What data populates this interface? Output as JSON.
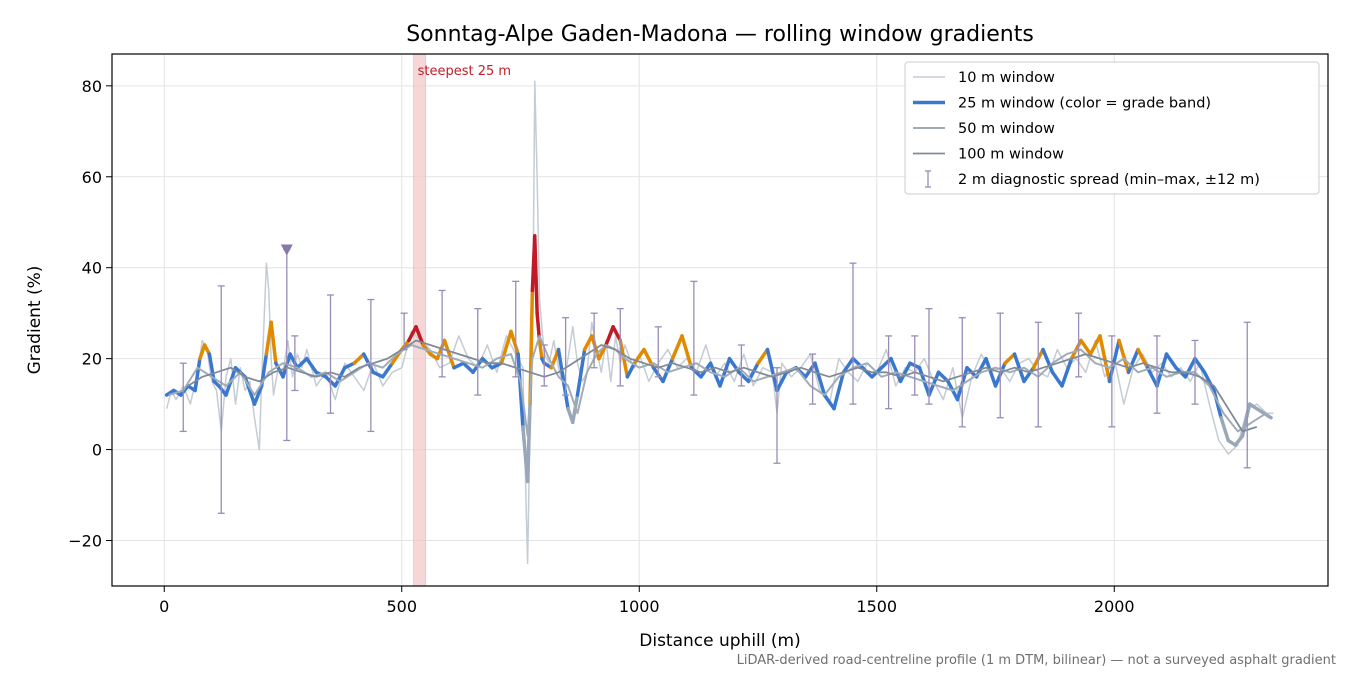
{
  "chart_data": {
    "type": "line",
    "title": "Sonntag-Alpe Gaden-Madona — rolling window gradients",
    "xlabel": "Distance uphill (m)",
    "ylabel": "Gradient (%)",
    "xlim": [
      -110,
      2450
    ],
    "ylim": [
      -30,
      87
    ],
    "xticks": [
      0,
      500,
      1000,
      1500,
      2000
    ],
    "xtick_labels": [
      "0",
      "500",
      "1000",
      "1500",
      "2000"
    ],
    "yticks": [
      -20,
      0,
      20,
      40,
      60,
      80
    ],
    "ytick_labels": [
      "−20",
      "0",
      "20",
      "40",
      "60",
      "80"
    ],
    "grid": true,
    "legend_position": "top-right",
    "footnote": "LiDAR-derived road-centreline profile (1 m DTM, bilinear) — not a surveyed asphalt gradient",
    "annotations": [
      {
        "text": "steepest 25 m",
        "x_start": 525,
        "x_end": 550,
        "color": "#c0202a"
      }
    ],
    "marker": {
      "x": 258,
      "y": 44,
      "shape": "triangle-down",
      "color": "#8878a8"
    },
    "grade_band_colors": {
      "descent": "#98a8b8",
      "moderate": "#3a78d0",
      "steep": "#e08a00",
      "very_steep": "#c01a28"
    },
    "series": [
      {
        "name": "10 m window",
        "color": "#c4ccd4",
        "width": 1.5,
        "x": [
          5,
          15,
          25,
          40,
          55,
          70,
          80,
          90,
          100,
          110,
          120,
          130,
          140,
          150,
          160,
          170,
          180,
          190,
          200,
          205,
          210,
          215,
          220,
          225,
          230,
          240,
          250,
          260,
          270,
          280,
          290,
          300,
          320,
          340,
          360,
          380,
          400,
          420,
          440,
          460,
          480,
          500,
          520,
          540,
          560,
          580,
          600,
          620,
          640,
          660,
          680,
          700,
          720,
          740,
          745,
          750,
          755,
          760,
          765,
          770,
          775,
          780,
          785,
          790,
          795,
          800,
          810,
          820,
          830,
          840,
          850,
          860,
          870,
          880,
          890,
          900,
          910,
          920,
          930,
          940,
          950,
          960,
          970,
          980,
          990,
          1000,
          1020,
          1040,
          1060,
          1080,
          1100,
          1120,
          1140,
          1160,
          1180,
          1200,
          1220,
          1240,
          1260,
          1280,
          1290,
          1300,
          1320,
          1340,
          1360,
          1380,
          1400,
          1420,
          1440,
          1460,
          1480,
          1500,
          1520,
          1540,
          1560,
          1580,
          1600,
          1620,
          1640,
          1660,
          1680,
          1700,
          1720,
          1740,
          1760,
          1780,
          1800,
          1820,
          1840,
          1860,
          1880,
          1900,
          1920,
          1940,
          1960,
          1980,
          2000,
          2020,
          2040,
          2060,
          2080,
          2100,
          2120,
          2140,
          2160,
          2180,
          2200,
          2220,
          2240,
          2260,
          2280,
          2300,
          2320,
          2335
        ],
        "y": [
          9,
          13,
          11,
          14,
          10,
          17,
          24,
          22,
          15,
          13,
          4,
          16,
          20,
          10,
          18,
          13,
          15,
          7,
          0,
          15,
          28,
          41,
          35,
          20,
          12,
          18,
          17,
          24,
          16,
          21,
          18,
          22,
          14,
          17,
          11,
          19,
          16,
          13,
          19,
          14,
          17,
          18,
          26,
          24,
          22,
          18,
          19,
          25,
          20,
          18,
          23,
          17,
          25,
          21,
          22,
          19,
          18,
          -5,
          -25,
          5,
          20,
          81,
          60,
          33,
          27,
          21,
          19,
          24,
          18,
          14,
          20,
          27,
          19,
          15,
          17,
          28,
          22,
          17,
          24,
          15,
          25,
          19,
          23,
          20,
          18,
          21,
          15,
          19,
          22,
          18,
          20,
          17,
          23,
          16,
          19,
          15,
          21,
          14,
          18,
          17,
          8,
          19,
          16,
          18,
          21,
          13,
          10,
          20,
          17,
          15,
          19,
          17,
          22,
          14,
          18,
          17,
          20,
          15,
          11,
          18,
          7,
          16,
          21,
          17,
          18,
          15,
          19,
          20,
          17,
          16,
          22,
          18,
          20,
          17,
          24,
          16,
          20,
          10,
          18,
          21,
          17,
          19,
          16,
          18,
          15,
          19,
          10,
          2,
          -1,
          1,
          9,
          10,
          8,
          8
        ]
      },
      {
        "name": "25 m window (color = grade band)",
        "color": "#3a78d0",
        "width": 3.5,
        "banded": true,
        "x": [
          5,
          20,
          35,
          50,
          65,
          75,
          85,
          95,
          105,
          115,
          130,
          150,
          170,
          190,
          205,
          215,
          225,
          235,
          250,
          265,
          280,
          300,
          320,
          340,
          360,
          380,
          400,
          420,
          440,
          460,
          480,
          500,
          515,
          530,
          545,
          560,
          575,
          590,
          610,
          630,
          650,
          670,
          690,
          710,
          730,
          745,
          755,
          765,
          770,
          775,
          780,
          785,
          790,
          795,
          800,
          815,
          830,
          850,
          860,
          870,
          885,
          900,
          915,
          930,
          945,
          960,
          975,
          990,
          1010,
          1030,
          1050,
          1070,
          1090,
          1110,
          1130,
          1150,
          1170,
          1190,
          1210,
          1230,
          1250,
          1270,
          1290,
          1310,
          1330,
          1350,
          1370,
          1390,
          1410,
          1430,
          1450,
          1470,
          1490,
          1510,
          1530,
          1550,
          1570,
          1590,
          1610,
          1630,
          1650,
          1670,
          1690,
          1710,
          1730,
          1750,
          1770,
          1790,
          1810,
          1830,
          1850,
          1870,
          1890,
          1910,
          1930,
          1950,
          1970,
          1990,
          2010,
          2030,
          2050,
          2070,
          2090,
          2110,
          2130,
          2150,
          2170,
          2190,
          2210,
          2225,
          2240,
          2255,
          2270,
          2285,
          2300,
          2315,
          2330
        ],
        "y": [
          12,
          13,
          12,
          14,
          13,
          20,
          23,
          21,
          15,
          14,
          12,
          18,
          16,
          10,
          14,
          21,
          28,
          19,
          16,
          21,
          18,
          20,
          17,
          16,
          14,
          18,
          19,
          21,
          17,
          16,
          19,
          22,
          24,
          27,
          23,
          21,
          20,
          24,
          18,
          19,
          17,
          20,
          18,
          19,
          26,
          21,
          5,
          -7,
          10,
          35,
          47,
          30,
          24,
          20,
          19,
          18,
          22,
          9,
          6,
          12,
          22,
          25,
          20,
          23,
          27,
          24,
          16,
          19,
          22,
          18,
          15,
          20,
          25,
          18,
          16,
          19,
          14,
          20,
          17,
          15,
          19,
          22,
          13,
          17,
          18,
          16,
          19,
          12,
          9,
          17,
          20,
          18,
          16,
          18,
          20,
          15,
          19,
          18,
          12,
          17,
          15,
          11,
          18,
          16,
          20,
          14,
          19,
          21,
          15,
          18,
          22,
          17,
          14,
          20,
          24,
          21,
          25,
          15,
          24,
          17,
          22,
          18,
          14,
          21,
          18,
          16,
          20,
          17,
          13,
          7,
          2,
          1,
          3,
          10,
          9,
          8,
          7
        ]
      },
      {
        "name": "50 m window",
        "color": "#a0acb8",
        "width": 2.0,
        "x": [
          10,
          40,
          70,
          100,
          130,
          160,
          190,
          220,
          250,
          280,
          310,
          340,
          370,
          400,
          430,
          460,
          490,
          520,
          550,
          580,
          610,
          640,
          670,
          700,
          730,
          750,
          765,
          775,
          790,
          810,
          830,
          850,
          870,
          890,
          910,
          930,
          950,
          970,
          1000,
          1030,
          1060,
          1090,
          1120,
          1150,
          1180,
          1210,
          1240,
          1270,
          1300,
          1330,
          1360,
          1390,
          1420,
          1450,
          1480,
          1510,
          1540,
          1570,
          1600,
          1630,
          1660,
          1690,
          1720,
          1750,
          1780,
          1810,
          1840,
          1870,
          1900,
          1930,
          1960,
          1990,
          2020,
          2050,
          2080,
          2110,
          2140,
          2170,
          2200,
          2230,
          2260,
          2290,
          2320
        ],
        "y": [
          12,
          13,
          18,
          16,
          14,
          17,
          12,
          17,
          19,
          18,
          16,
          17,
          15,
          17,
          19,
          18,
          21,
          23,
          22,
          21,
          20,
          19,
          18,
          20,
          21,
          15,
          3,
          20,
          25,
          20,
          16,
          14,
          8,
          17,
          21,
          23,
          22,
          20,
          18,
          19,
          17,
          18,
          19,
          17,
          16,
          18,
          15,
          16,
          17,
          18,
          14,
          12,
          16,
          18,
          19,
          16,
          17,
          16,
          15,
          14,
          13,
          15,
          17,
          18,
          17,
          18,
          16,
          19,
          21,
          22,
          19,
          18,
          20,
          17,
          18,
          16,
          17,
          17,
          14,
          8,
          4,
          6,
          8
        ]
      },
      {
        "name": "100 m window",
        "color": "#808a96",
        "width": 1.8,
        "x": [
          50,
          80,
          110,
          140,
          170,
          200,
          230,
          260,
          290,
          320,
          350,
          380,
          410,
          440,
          470,
          500,
          530,
          560,
          590,
          620,
          650,
          680,
          710,
          740,
          770,
          800,
          830,
          860,
          890,
          920,
          950,
          980,
          1010,
          1040,
          1070,
          1100,
          1130,
          1160,
          1190,
          1220,
          1250,
          1280,
          1310,
          1340,
          1370,
          1400,
          1430,
          1460,
          1490,
          1520,
          1550,
          1580,
          1610,
          1640,
          1670,
          1700,
          1730,
          1760,
          1790,
          1820,
          1850,
          1880,
          1910,
          1940,
          1970,
          2000,
          2030,
          2060,
          2090,
          2120,
          2150,
          2180,
          2210,
          2240,
          2270,
          2300
        ],
        "y": [
          14,
          16,
          17,
          18,
          16,
          15,
          17,
          18,
          17,
          16,
          17,
          16,
          18,
          19,
          20,
          22,
          24,
          23,
          22,
          21,
          20,
          19,
          19,
          18,
          17,
          16,
          17,
          19,
          21,
          23,
          22,
          20,
          19,
          18,
          19,
          18,
          17,
          18,
          17,
          18,
          17,
          16,
          17,
          18,
          17,
          16,
          17,
          18,
          17,
          17,
          16,
          17,
          16,
          15,
          16,
          17,
          18,
          17,
          18,
          17,
          18,
          19,
          20,
          21,
          20,
          19,
          18,
          19,
          18,
          17,
          17,
          16,
          14,
          9,
          4,
          5
        ]
      },
      {
        "name": "2 m diagnostic spread (min–max, ±12 m)",
        "color": "#9a8cb8",
        "type": "errorbar",
        "x": [
          40,
          120,
          258,
          275,
          350,
          435,
          505,
          585,
          660,
          740,
          800,
          845,
          905,
          960,
          1040,
          1115,
          1215,
          1290,
          1365,
          1450,
          1525,
          1580,
          1610,
          1680,
          1760,
          1840,
          1925,
          1995,
          2090,
          2170,
          2280
        ],
        "low": [
          4,
          -14,
          2,
          13,
          8,
          4,
          22,
          16,
          12,
          16,
          14,
          12,
          18,
          14,
          16,
          12,
          14,
          -3,
          10,
          10,
          9,
          12,
          10,
          5,
          7,
          5,
          16,
          5,
          8,
          10,
          -4
        ],
        "high": [
          19,
          36,
          44,
          25,
          34,
          33,
          30,
          35,
          31,
          37,
          23,
          29,
          30,
          31,
          27,
          37,
          23,
          18,
          21,
          41,
          25,
          25,
          31,
          29,
          30,
          28,
          30,
          25,
          25,
          24,
          28
        ]
      }
    ]
  }
}
